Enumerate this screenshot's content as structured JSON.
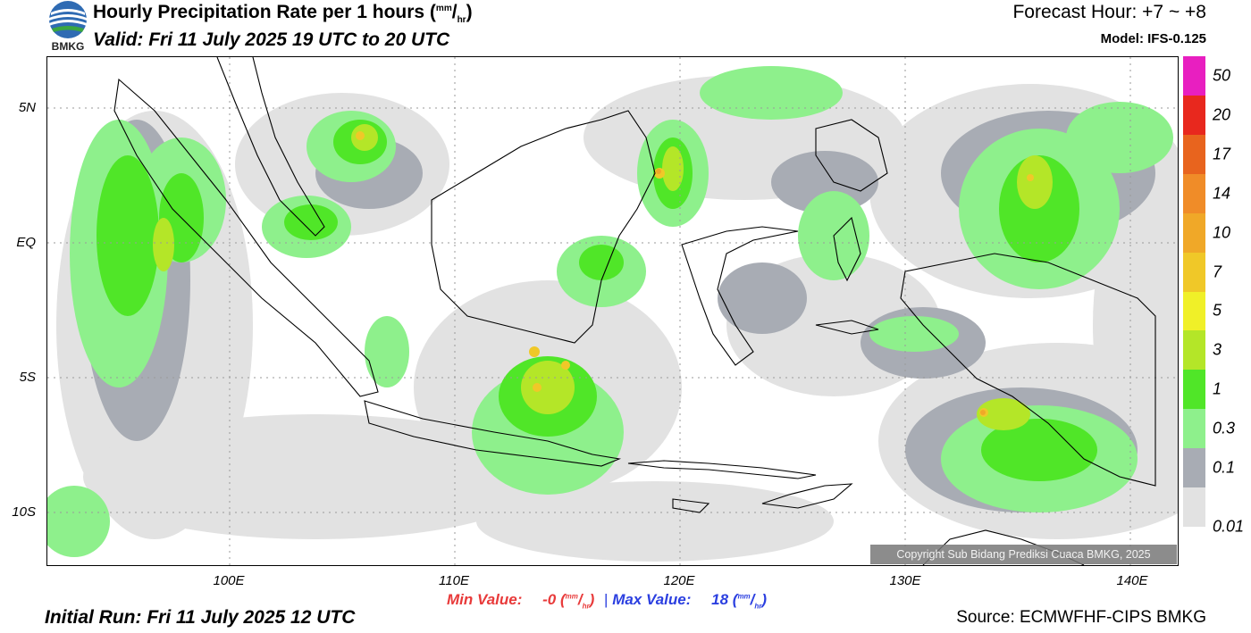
{
  "header": {
    "title": "Hourly Precipitation Rate per 1 hours",
    "title_unit_num": "mm",
    "title_unit_den": "hr",
    "valid": "Valid: Fri 11 July 2025 19 UTC to 20 UTC",
    "forecast_hour": "Forecast Hour: +7 ~ +8",
    "model": "Model: IFS-0.125",
    "logo_text": "BMKG"
  },
  "map": {
    "lat_labels": [
      "5N",
      "EQ",
      "5S",
      "10S"
    ],
    "lon_labels": [
      "100E",
      "110E",
      "120E",
      "130E",
      "140E"
    ],
    "copyright": "Copyright Sub Bidang Prediksi Cuaca BMKG, 2025"
  },
  "colorbar": {
    "labels": [
      "50",
      "20",
      "17",
      "14",
      "10",
      "7",
      "5",
      "3",
      "1",
      "0.3",
      "0.1",
      "0.01"
    ],
    "colors": [
      "#e81fc0",
      "#e8281e",
      "#e8641e",
      "#f08c28",
      "#f0a828",
      "#f0c828",
      "#f0f028",
      "#b4e628",
      "#50e628",
      "#8ef08c",
      "#a8acb4",
      "#e2e2e2"
    ]
  },
  "footer": {
    "min_label": "Min Value:",
    "min_value": "-0",
    "max_label": "Max Value:",
    "max_value": "18",
    "unit_num": "mm",
    "unit_den": "hr",
    "initial_run": "Initial Run: Fri 11 July 2025 12 UTC",
    "source": "Source: ECMWFHF-CIPS BMKG"
  }
}
